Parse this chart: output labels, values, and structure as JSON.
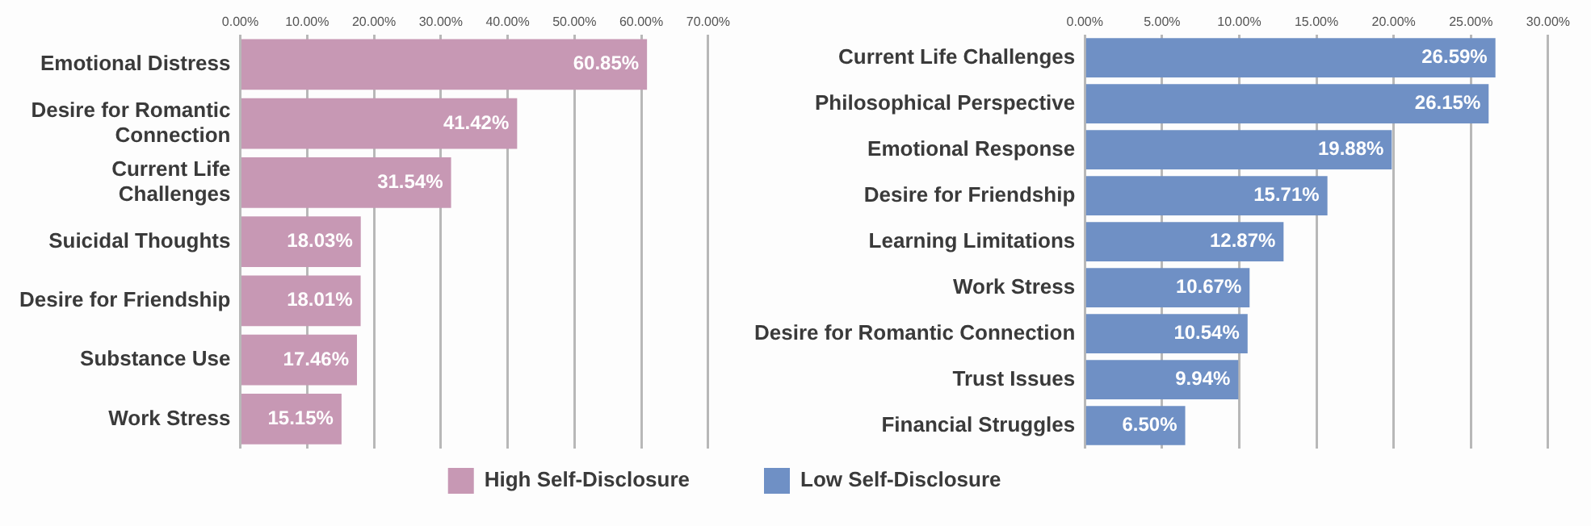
{
  "chart_data": [
    {
      "type": "bar",
      "orientation": "horizontal",
      "categories": [
        "Emotional Distress",
        "Desire for Romantic Connection",
        "Current Life Challenges",
        "Suicidal Thoughts",
        "Desire for Friendship",
        "Substance Use",
        "Work Stress"
      ],
      "series": [
        {
          "name": "High Self-Disclosure",
          "color": "#c798b4",
          "values": [
            60.85,
            41.42,
            31.54,
            18.03,
            18.01,
            17.46,
            15.15
          ],
          "value_labels": [
            "60.85%",
            "41.42%",
            "31.54%",
            "18.03%",
            "18.01%",
            "17.46%",
            "15.15%"
          ]
        }
      ],
      "xlim": [
        0,
        70
      ],
      "xticks": [
        {
          "value": 0,
          "label": "0.00%"
        },
        {
          "value": 10,
          "label": "10.00%"
        },
        {
          "value": 20,
          "label": "20.00%"
        },
        {
          "value": 30,
          "label": "30.00%"
        },
        {
          "value": 40,
          "label": "40.00%"
        },
        {
          "value": 50,
          "label": "50.00%"
        },
        {
          "value": 60,
          "label": "60.00%"
        },
        {
          "value": 70,
          "label": "70.00%"
        }
      ],
      "grid": "x",
      "legend": "bottom"
    },
    {
      "type": "bar",
      "orientation": "horizontal",
      "categories": [
        "Current Life Challenges",
        "Philosophical Perspective",
        "Emotional Response",
        "Desire for Friendship",
        "Learning Limitations",
        "Work Stress",
        "Desire for Romantic Connection",
        "Trust Issues",
        "Financial Struggles"
      ],
      "series": [
        {
          "name": "Low Self-Disclosure",
          "color": "#6f90c5",
          "values": [
            26.59,
            26.15,
            19.88,
            15.71,
            12.87,
            10.67,
            10.54,
            9.94,
            6.5
          ],
          "value_labels": [
            "26.59%",
            "26.15%",
            "19.88%",
            "15.71%",
            "12.87%",
            "10.67%",
            "10.54%",
            "9.94%",
            "6.50%"
          ]
        }
      ],
      "xlim": [
        0,
        30
      ],
      "xticks": [
        {
          "value": 0,
          "label": "0.00%"
        },
        {
          "value": 5,
          "label": "5.00%"
        },
        {
          "value": 10,
          "label": "10.00%"
        },
        {
          "value": 15,
          "label": "15.00%"
        },
        {
          "value": 20,
          "label": "20.00%"
        },
        {
          "value": 25,
          "label": "25.00%"
        },
        {
          "value": 30,
          "label": "30.00%"
        }
      ],
      "grid": "x",
      "legend": "bottom"
    }
  ]
}
